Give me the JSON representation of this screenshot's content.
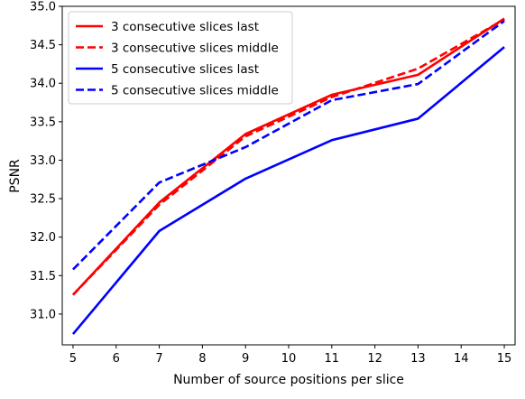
{
  "chart_data": {
    "type": "line",
    "title": "",
    "xlabel": "Number of source positions per slice",
    "ylabel": "PSNR",
    "xlim": [
      4.75,
      15.25
    ],
    "ylim": [
      30.6,
      35.0
    ],
    "x_ticks": [
      5,
      6,
      7,
      8,
      9,
      10,
      11,
      12,
      13,
      14,
      15
    ],
    "y_ticks": [
      31.0,
      31.5,
      32.0,
      32.5,
      33.0,
      33.5,
      34.0,
      34.5,
      35.0
    ],
    "grid": false,
    "legend_position": "top-left",
    "x": [
      5,
      7,
      9,
      11,
      13,
      15
    ],
    "series": [
      {
        "name": "3 consecutive slices last",
        "color": "#ff0000",
        "dash": "solid",
        "values": [
          31.25,
          32.45,
          33.34,
          33.85,
          34.11,
          34.84
        ]
      },
      {
        "name": "3 consecutive slices middle",
        "color": "#ff0000",
        "dash": "dashed",
        "values": [
          31.25,
          32.42,
          33.31,
          33.82,
          34.19,
          34.83
        ]
      },
      {
        "name": "5 consecutive slices last",
        "color": "#0000ff",
        "dash": "solid",
        "values": [
          30.74,
          32.08,
          32.76,
          33.26,
          33.54,
          34.47
        ]
      },
      {
        "name": "5 consecutive slices middle",
        "color": "#0000ff",
        "dash": "dashed",
        "values": [
          31.58,
          32.71,
          33.17,
          33.78,
          33.99,
          34.81
        ]
      }
    ]
  }
}
